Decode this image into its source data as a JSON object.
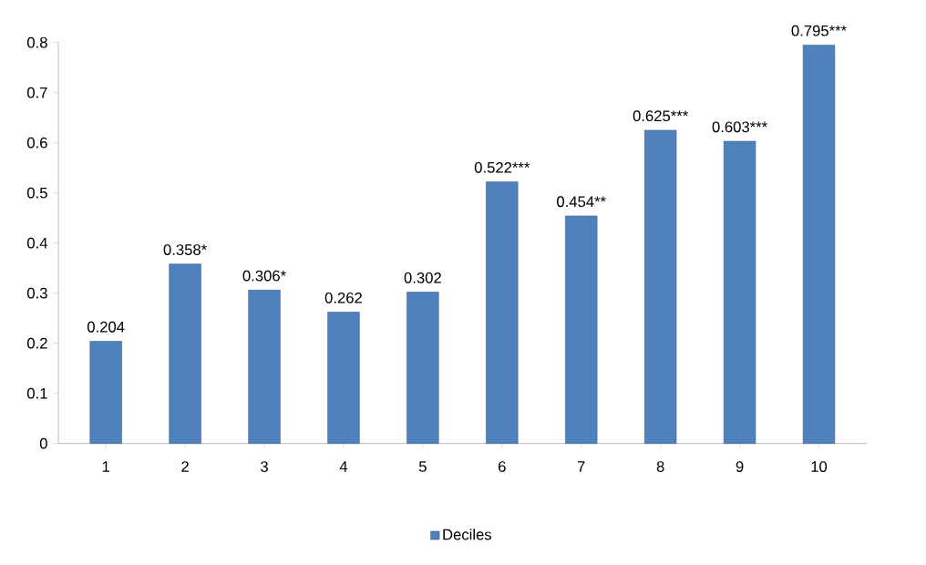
{
  "chart_data": {
    "type": "bar",
    "categories": [
      "1",
      "2",
      "3",
      "4",
      "5",
      "6",
      "7",
      "8",
      "9",
      "10"
    ],
    "series": [
      {
        "name": "Deciles",
        "color": "#4f81bd",
        "values": [
          0.204,
          0.358,
          0.306,
          0.262,
          0.302,
          0.522,
          0.454,
          0.625,
          0.603,
          0.795
        ],
        "value_labels": [
          "0.204",
          "0.358*",
          "0.306*",
          "0.262",
          "0.302",
          "0.522***",
          "0.454**",
          "0.625***",
          "0.603***",
          "0.795***"
        ]
      }
    ],
    "ylim": [
      0,
      0.8
    ],
    "yticks": [
      0,
      0.1,
      0.2,
      0.3,
      0.4,
      0.5,
      0.6,
      0.7,
      0.8
    ],
    "legend": "bottom"
  }
}
